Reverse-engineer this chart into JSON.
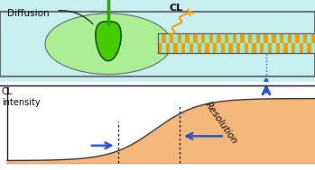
{
  "fig_width": 3.49,
  "fig_height": 1.89,
  "dpi": 100,
  "top_bg": "#c8f0f0",
  "channel_color": "#c8f0f0",
  "blob_outer_color": "#55dd22",
  "blob_inner_color": "#aaff44",
  "blob_glow_color": "#ccff88",
  "checkerboard_orange": "#ff9900",
  "checkerboard_cyan": "#88eedd",
  "checkerboard_white": "#ffffff",
  "curve_fill_color": "#f5b87a",
  "curve_line_color": "#333333",
  "arrow_color": "#2255cc",
  "orange_wavy_color": "#ff9900",
  "text_diffusion": "Diffusion",
  "text_cl": "CL",
  "text_cl_intensity": "CL\nintensity",
  "text_resolution": "Resolution",
  "border_color": "#555555",
  "needle_color": "#22aa00"
}
